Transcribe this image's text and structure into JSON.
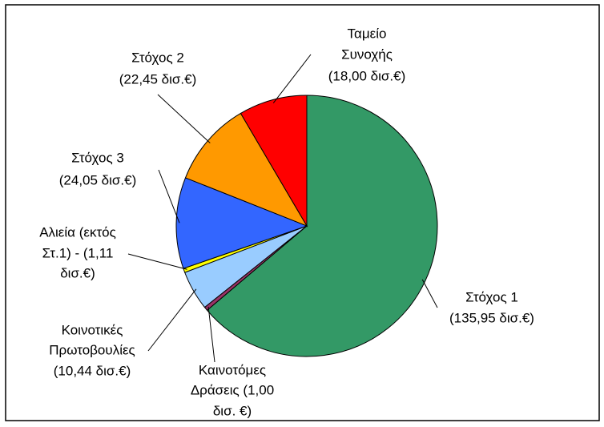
{
  "chart_data": {
    "type": "pie",
    "values": [
      135.95,
      1.0,
      10.44,
      1.11,
      24.05,
      22.45,
      18.0
    ],
    "labels": [
      [
        "Στόχος 1",
        "(135,95 δισ.€)"
      ],
      [
        "Καινοτόμες",
        "Δράσεις (1,00",
        "δισ. €)"
      ],
      [
        "Κοινοτικές",
        "Πρωτοβουλίες",
        "(10,44 δισ.€)"
      ],
      [
        "Αλιεία (εκτός",
        "Στ.1) - (1,11",
        "δισ.€)"
      ],
      [
        "Στόχος 3",
        "(24,05 δισ.€)"
      ],
      [
        "Στόχος 2",
        "(22,45 δισ.€)"
      ],
      [
        "Ταμείο",
        "Συνοχής",
        "(18,00 δισ.€)"
      ]
    ],
    "colors": [
      "#339966",
      "#993366",
      "#99ccff",
      "#ffff00",
      "#3366ff",
      "#ff9900",
      "#ff0000"
    ]
  }
}
